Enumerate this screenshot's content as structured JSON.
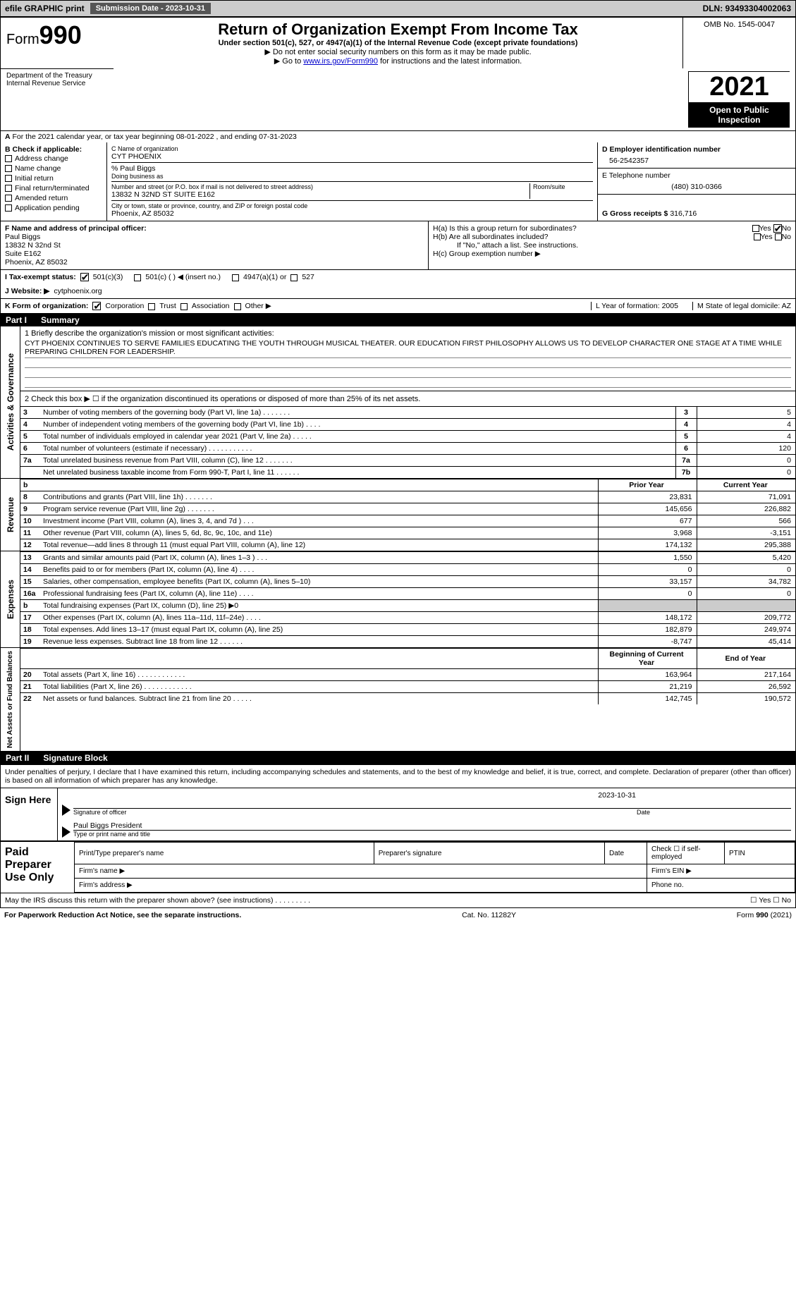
{
  "topbar": {
    "efile": "efile GRAPHIC print",
    "submission_label": "Submission Date - 2023-10-31",
    "dln": "DLN: 93493304002063"
  },
  "header": {
    "form_word": "Form",
    "form_num": "990",
    "title": "Return of Organization Exempt From Income Tax",
    "sub1": "Under section 501(c), 527, or 4947(a)(1) of the Internal Revenue Code (except private foundations)",
    "sub2": "▶ Do not enter social security numbers on this form as it may be made public.",
    "sub3_pre": "▶ Go to ",
    "sub3_link": "www.irs.gov/Form990",
    "sub3_post": " for instructions and the latest information.",
    "dept": "Department of the Treasury\nInternal Revenue Service",
    "omb": "OMB No. 1545-0047",
    "year": "2021",
    "open": "Open to Public Inspection"
  },
  "periodA": "For the 2021 calendar year, or tax year beginning 08-01-2022    , and ending 07-31-2023",
  "sectionB": {
    "label": "B Check if applicable:",
    "items": [
      "Address change",
      "Name change",
      "Initial return",
      "Final return/terminated",
      "Amended return",
      "Application pending"
    ]
  },
  "sectionC": {
    "name_label": "C Name of organization",
    "name": "CYT PHOENIX",
    "care_of": "% Paul Biggs",
    "dba_label": "Doing business as",
    "addr_label": "Number and street (or P.O. box if mail is not delivered to street address)",
    "room_label": "Room/suite",
    "addr": "13832 N 32ND ST SUITE E162",
    "city_label": "City or town, state or province, country, and ZIP or foreign postal code",
    "city": "Phoenix, AZ  85032"
  },
  "sectionD": {
    "label": "D Employer identification number",
    "value": "56-2542357"
  },
  "sectionE": {
    "label": "E Telephone number",
    "value": "(480) 310-0366"
  },
  "sectionG": {
    "label": "G Gross receipts $",
    "value": "316,716"
  },
  "sectionF": {
    "label": "F  Name and address of principal officer:",
    "name": "Paul Biggs",
    "l1": "13832 N 32nd St",
    "l2": "Suite E162",
    "l3": "Phoenix, AZ  85032"
  },
  "sectionH": {
    "a": "H(a)  Is this a group return for subordinates?",
    "b": "H(b)  Are all subordinates included?",
    "note": "If \"No,\" attach a list. See instructions.",
    "c": "H(c)  Group exemption number ▶",
    "yes": "Yes",
    "no": "No"
  },
  "rowI": {
    "label": "I  Tax-exempt status:",
    "opt1": "501(c)(3)",
    "opt2": "501(c) (  ) ◀ (insert no.)",
    "opt3": "4947(a)(1) or",
    "opt4": "527"
  },
  "rowJ": {
    "label": "J  Website: ▶",
    "value": "cytphoenix.org"
  },
  "rowK": {
    "label": "K Form of organization:",
    "opts": [
      "Corporation",
      "Trust",
      "Association",
      "Other ▶"
    ],
    "L": "L Year of formation: 2005",
    "M": "M State of legal domicile: AZ"
  },
  "partI": {
    "head": "Part I",
    "title": "Summary",
    "line1_label": "1  Briefly describe the organization's mission or most significant activities:",
    "mission": "CYT PHOENIX CONTINUES TO SERVE FAMILIES EDUCATING THE YOUTH THROUGH MUSICAL THEATER. OUR EDUCATION FIRST PHILOSOPHY ALLOWS US TO DEVELOP CHARACTER ONE STAGE AT A TIME WHILE PREPARING CHILDREN FOR LEADERSHIP.",
    "line2": "2   Check this box ▶ ☐  if the organization discontinued its operations or disposed of more than 25% of its net assets.",
    "gov_label": "Activities & Governance",
    "rev_label": "Revenue",
    "exp_label": "Expenses",
    "na_label": "Net Assets or Fund Balances",
    "hdr_prior": "Prior Year",
    "hdr_curr": "Current Year",
    "hdr_begin": "Beginning of Current Year",
    "hdr_end": "End of Year",
    "lines_gov": [
      {
        "n": "3",
        "t": "Number of voting members of the governing body (Part VI, line 1a)  .   .   .   .   .   .   .",
        "box": "3",
        "v": "5"
      },
      {
        "n": "4",
        "t": "Number of independent voting members of the governing body (Part VI, line 1b)  .   .   .   .",
        "box": "4",
        "v": "4"
      },
      {
        "n": "5",
        "t": "Total number of individuals employed in calendar year 2021 (Part V, line 2a)  .   .   .   .   .",
        "box": "5",
        "v": "4"
      },
      {
        "n": "6",
        "t": "Total number of volunteers (estimate if necessary)    .   .   .   .   .   .   .   .   .   .   .",
        "box": "6",
        "v": "120"
      },
      {
        "n": "7a",
        "t": "Total unrelated business revenue from Part VIII, column (C), line 12  .   .   .   .   .   .   .",
        "box": "7a",
        "v": "0"
      },
      {
        "n": "",
        "t": "Net unrelated business taxable income from Form 990-T, Part I, line 11  .   .   .   .   .   .",
        "box": "7b",
        "v": "0"
      }
    ],
    "lines_rev": [
      {
        "n": "b",
        "t": "",
        "p": "",
        "c": "",
        "hdr": true
      },
      {
        "n": "8",
        "t": "Contributions and grants (Part VIII, line 1h)  .   .   .   .   .   .   .",
        "p": "23,831",
        "c": "71,091"
      },
      {
        "n": "9",
        "t": "Program service revenue (Part VIII, line 2g)  .   .   .   .   .   .   .",
        "p": "145,656",
        "c": "226,882"
      },
      {
        "n": "10",
        "t": "Investment income (Part VIII, column (A), lines 3, 4, and 7d )  .   .   .",
        "p": "677",
        "c": "566"
      },
      {
        "n": "11",
        "t": "Other revenue (Part VIII, column (A), lines 5, 6d, 8c, 9c, 10c, and 11e)",
        "p": "3,968",
        "c": "-3,151"
      },
      {
        "n": "12",
        "t": "Total revenue—add lines 8 through 11 (must equal Part VIII, column (A), line 12)",
        "p": "174,132",
        "c": "295,388"
      }
    ],
    "lines_exp": [
      {
        "n": "13",
        "t": "Grants and similar amounts paid (Part IX, column (A), lines 1–3 )  .   .   .",
        "p": "1,550",
        "c": "5,420"
      },
      {
        "n": "14",
        "t": "Benefits paid to or for members (Part IX, column (A), line 4)  .   .   .   .",
        "p": "0",
        "c": "0"
      },
      {
        "n": "15",
        "t": "Salaries, other compensation, employee benefits (Part IX, column (A), lines 5–10)",
        "p": "33,157",
        "c": "34,782"
      },
      {
        "n": "16a",
        "t": "Professional fundraising fees (Part IX, column (A), line 11e)  .   .   .   .",
        "p": "0",
        "c": "0"
      },
      {
        "n": "b",
        "t": "Total fundraising expenses (Part IX, column (D), line 25) ▶0",
        "p": "",
        "c": "",
        "shaded": true
      },
      {
        "n": "17",
        "t": "Other expenses (Part IX, column (A), lines 11a–11d, 11f–24e)  .   .   .   .",
        "p": "148,172",
        "c": "209,772"
      },
      {
        "n": "18",
        "t": "Total expenses. Add lines 13–17 (must equal Part IX, column (A), line 25)",
        "p": "182,879",
        "c": "249,974"
      },
      {
        "n": "19",
        "t": "Revenue less expenses. Subtract line 18 from line 12  .   .   .   .   .   .",
        "p": "-8,747",
        "c": "45,414"
      }
    ],
    "lines_na": [
      {
        "n": "",
        "t": "",
        "p": "",
        "c": "",
        "hdr": true
      },
      {
        "n": "20",
        "t": "Total assets (Part X, line 16)  .   .   .   .   .   .   .   .   .   .   .   .",
        "p": "163,964",
        "c": "217,164"
      },
      {
        "n": "21",
        "t": "Total liabilities (Part X, line 26)  .   .   .   .   .   .   .   .   .   .   .   .",
        "p": "21,219",
        "c": "26,592"
      },
      {
        "n": "22",
        "t": "Net assets or fund balances. Subtract line 21 from line 20   .   .   .   .   .",
        "p": "142,745",
        "c": "190,572"
      }
    ]
  },
  "partII": {
    "head": "Part II",
    "title": "Signature Block",
    "penalty": "Under penalties of perjury, I declare that I have examined this return, including accompanying schedules and statements, and to the best of my knowledge and belief, it is true, correct, and complete. Declaration of preparer (other than officer) is based on all information of which preparer has any knowledge.",
    "sign_here": "Sign Here",
    "sig_officer": "Signature of officer",
    "sig_date": "Date",
    "officer_name": "Paul Biggs  President",
    "type_name": "Type or print name and title",
    "date_val": "2023-10-31",
    "paid": "Paid Preparer Use Only",
    "prep_name": "Print/Type preparer's name",
    "prep_sig": "Preparer's signature",
    "prep_date": "Date",
    "prep_check": "Check ☐ if self-employed",
    "ptin": "PTIN",
    "firm_name": "Firm's name   ▶",
    "firm_ein": "Firm's EIN ▶",
    "firm_addr": "Firm's address ▶",
    "phone": "Phone no.",
    "discuss": "May the IRS discuss this return with the preparer shown above? (see instructions)   .   .   .   .   .   .   .   .   .",
    "discuss_yn": "☐ Yes   ☐ No"
  },
  "footer": {
    "paperwork": "For Paperwork Reduction Act Notice, see the separate instructions.",
    "cat": "Cat. No. 11282Y",
    "form": "Form 990 (2021)"
  }
}
